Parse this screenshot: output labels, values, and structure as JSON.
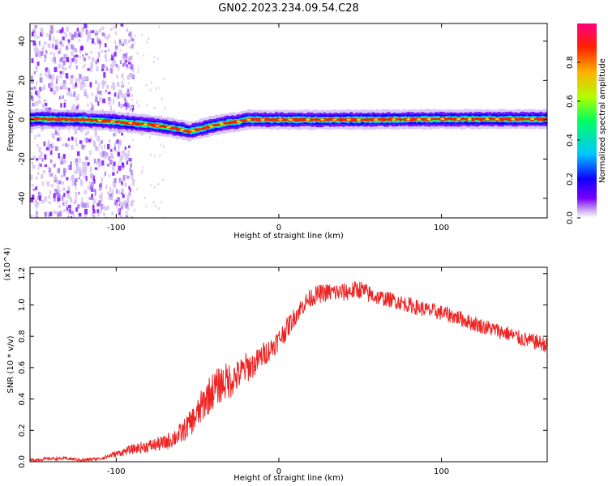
{
  "title": "GN02.2023.234.09.54.C28",
  "chart_data": [
    {
      "type": "heatmap",
      "title": "GN02.2023.234.09.54.C28",
      "xlabel": "Height of straight line (km)",
      "ylabel": "Frequency (Hz)",
      "xlim": [
        -153,
        165
      ],
      "ylim": [
        -50,
        49
      ],
      "xticks": [
        -100,
        0,
        100
      ],
      "yticks": [
        -40,
        -20,
        0,
        20,
        40
      ],
      "colorbar": {
        "label": "Normalized spectral amplitude",
        "range": [
          0,
          1
        ],
        "ticks": [
          "0.0",
          "0.2",
          "0.4",
          "0.6",
          "0.8"
        ],
        "colors": [
          "#ffffff",
          "#c8a8f0",
          "#7a00ff",
          "#1000ff",
          "#00c8ff",
          "#00ff60",
          "#b0ff00",
          "#ffb000",
          "#ff2000",
          "#ff0080"
        ]
      },
      "ridge": {
        "description_points_x": [
          -150,
          -120,
          -100,
          -80,
          -70,
          -60,
          -55,
          -50,
          -45,
          -40,
          -35,
          -30,
          -25,
          -20,
          -10,
          0,
          50,
          100,
          165
        ],
        "frequency_hz": [
          0.5,
          0,
          -1,
          -2.5,
          -3.5,
          -5,
          -6,
          -5,
          -4,
          -3,
          -2,
          -1.5,
          -1,
          0,
          0,
          0,
          0,
          0.3,
          0.3
        ]
      },
      "noise_region_x": [
        -153,
        -100
      ]
    },
    {
      "type": "line",
      "xlabel": "Height of straight line (km)",
      "ylabel": "SNR (10 * v/v)",
      "y_multiplier": "(x10^4)",
      "xlim": [
        -153,
        165
      ],
      "ylim": [
        0,
        1.24
      ],
      "xticks": [
        -100,
        0,
        100
      ],
      "yticks": [
        "0.0",
        "0.2",
        "0.4",
        "0.6",
        "0.8",
        "1.0",
        "1.2"
      ],
      "color": "#ee2222",
      "series": [
        {
          "x": [
            -153,
            -140,
            -130,
            -120,
            -110,
            -100,
            -90,
            -80,
            -70,
            -60,
            -55,
            -50,
            -45,
            -40,
            -35,
            -30,
            -25,
            -20,
            -15,
            -10,
            -5,
            0,
            5,
            10,
            15,
            20,
            25,
            30,
            35,
            40,
            45,
            50,
            55,
            60,
            70,
            80,
            90,
            100,
            110,
            120,
            130,
            140,
            150,
            160,
            165
          ],
          "values": [
            0.01,
            0.02,
            0.02,
            0.01,
            0.02,
            0.05,
            0.08,
            0.1,
            0.12,
            0.18,
            0.24,
            0.3,
            0.4,
            0.46,
            0.5,
            0.52,
            0.55,
            0.6,
            0.62,
            0.68,
            0.72,
            0.78,
            0.85,
            0.93,
            1.0,
            1.05,
            1.07,
            1.08,
            1.08,
            1.08,
            1.09,
            1.1,
            1.07,
            1.05,
            1.03,
            1.0,
            0.97,
            0.95,
            0.92,
            0.88,
            0.85,
            0.82,
            0.78,
            0.76,
            0.74
          ],
          "noise_amplitude": [
            0.01,
            0.01,
            0.01,
            0.01,
            0.01,
            0.02,
            0.03,
            0.04,
            0.05,
            0.07,
            0.08,
            0.1,
            0.12,
            0.12,
            0.12,
            0.12,
            0.1,
            0.1,
            0.08,
            0.08,
            0.07,
            0.07,
            0.07,
            0.06,
            0.06,
            0.06,
            0.06,
            0.06,
            0.06,
            0.06,
            0.06,
            0.06,
            0.06,
            0.05,
            0.05,
            0.05,
            0.05,
            0.05,
            0.05,
            0.05,
            0.05,
            0.05,
            0.05,
            0.05,
            0.05
          ]
        }
      ]
    }
  ]
}
